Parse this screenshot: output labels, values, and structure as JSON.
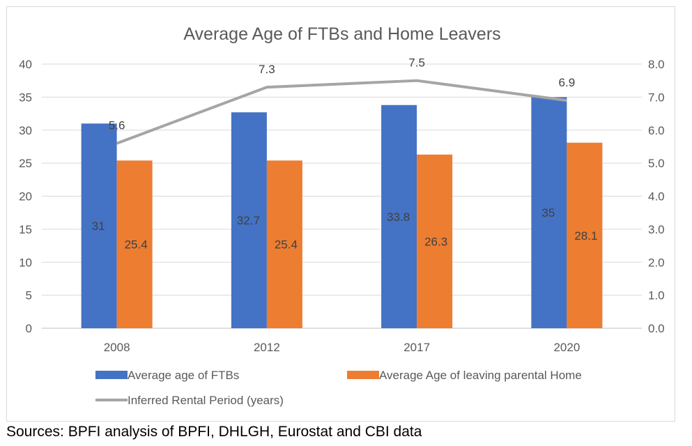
{
  "chart_data": {
    "type": "bar",
    "title": "Average Age of FTBs and Home Leavers",
    "categories": [
      "2008",
      "2012",
      "2017",
      "2020"
    ],
    "y_left": {
      "range": [
        0,
        40
      ],
      "ticks": [
        "0",
        "5",
        "10",
        "15",
        "20",
        "25",
        "30",
        "35",
        "40"
      ]
    },
    "y_right": {
      "range": [
        0,
        8
      ],
      "ticks": [
        "0.0",
        "1.0",
        "2.0",
        "3.0",
        "4.0",
        "5.0",
        "6.0",
        "7.0",
        "8.0"
      ]
    },
    "grid": true,
    "legend_position": "bottom",
    "series": [
      {
        "name": "Average age of FTBs",
        "kind": "bar",
        "axis": "left",
        "color": "#4472c4",
        "values": [
          31,
          32.7,
          33.8,
          35
        ],
        "labels": [
          "31",
          "32.7",
          "33.8",
          "35"
        ]
      },
      {
        "name": "Average Age of leaving parental Home",
        "kind": "bar",
        "axis": "left",
        "color": "#ed7d31",
        "values": [
          25.4,
          25.4,
          26.3,
          28.1
        ],
        "labels": [
          "25.4",
          "25.4",
          "26.3",
          "28.1"
        ]
      },
      {
        "name": "Inferred Rental Period (years)",
        "kind": "line",
        "axis": "right",
        "color": "#a5a5a5",
        "values": [
          5.6,
          7.3,
          7.5,
          6.9
        ],
        "labels": [
          "5.6",
          "7.3",
          "7.5",
          "6.9"
        ]
      }
    ]
  },
  "source": "Sources: BPFI analysis of BPFI, DHLGH, Eurostat and CBI data"
}
